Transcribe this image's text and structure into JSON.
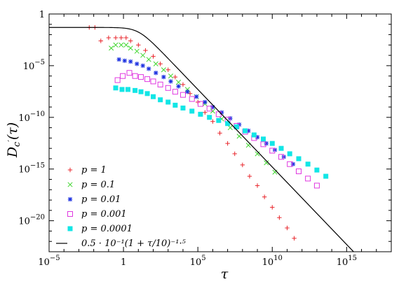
{
  "chart_data": {
    "type": "scatter",
    "xscale": "log",
    "yscale": "log",
    "xlim": [
      1e-05,
      1e+18
    ],
    "ylim": [
      1e-23,
      1
    ],
    "xlabel": "τ",
    "ylabel": "D_c′(τ)",
    "xticks": [
      {
        "value": 1e-05,
        "base": "10",
        "exp": "−5"
      },
      {
        "value": 1,
        "base": "1",
        "exp": ""
      },
      {
        "value": 100000.0,
        "base": "10",
        "exp": "5"
      },
      {
        "value": 10000000000.0,
        "base": "10",
        "exp": "10"
      },
      {
        "value": 1000000000000000.0,
        "base": "10",
        "exp": "15"
      }
    ],
    "yticks": [
      {
        "value": 1,
        "base": "1",
        "exp": ""
      },
      {
        "value": 1e-05,
        "base": "10",
        "exp": "−5"
      },
      {
        "value": 1e-10,
        "base": "10",
        "exp": "−10"
      },
      {
        "value": 1e-15,
        "base": "10",
        "exp": "−15"
      },
      {
        "value": 1e-20,
        "base": "10",
        "exp": "−20"
      }
    ],
    "grid": false,
    "legend_position": "bottom-left",
    "series": [
      {
        "name": "p = 1",
        "marker": "plus",
        "color": "#e8252b",
        "points": [
          [
            0.005,
            0.05
          ],
          [
            0.012,
            0.05
          ],
          [
            0.03,
            0.0025
          ],
          [
            0.1,
            0.005
          ],
          [
            0.3,
            0.005
          ],
          [
            0.7,
            0.005
          ],
          [
            1.5,
            0.005
          ],
          [
            3,
            0.0025
          ],
          [
            10,
            0.001
          ],
          [
            30,
            0.0003
          ],
          [
            100,
            8e-05
          ],
          [
            300,
            1.5e-05
          ],
          [
            1000,
            4e-06
          ],
          [
            3000,
            8e-07
          ],
          [
            10000.0,
            1.5e-07
          ],
          [
            30000.0,
            2e-08
          ],
          [
            100000.0,
            3e-09
          ],
          [
            300000.0,
            3e-10
          ],
          [
            1000000.0,
            4e-11
          ],
          [
            3000000.0,
            3e-12
          ],
          [
            10000000.0,
            3e-13
          ],
          [
            30000000.0,
            3e-14
          ],
          [
            100000000.0,
            2.5e-15
          ],
          [
            300000000.0,
            2e-16
          ],
          [
            1000000000.0,
            2.5e-17
          ],
          [
            3000000000.0,
            2e-18
          ],
          [
            10000000000.0,
            2e-19
          ],
          [
            30000000000.0,
            2e-20
          ],
          [
            100000000000.0,
            2e-21
          ],
          [
            300000000000.0,
            2e-22
          ]
        ]
      },
      {
        "name": "p = 0.1",
        "marker": "cross",
        "color": "#3fd62e",
        "points": [
          [
            0.15,
            0.0005
          ],
          [
            0.3,
            0.001
          ],
          [
            0.7,
            0.001
          ],
          [
            1.5,
            0.001
          ],
          [
            3,
            0.0005
          ],
          [
            8,
            0.00025
          ],
          [
            20,
            0.0001
          ],
          [
            50,
            4e-05
          ],
          [
            150,
            1.5e-05
          ],
          [
            500,
            4e-06
          ],
          [
            1500,
            1e-06
          ],
          [
            5000,
            2.5e-07
          ],
          [
            20000.0,
            5e-08
          ],
          [
            80000.0,
            1e-08
          ],
          [
            300000.0,
            2e-09
          ],
          [
            1000000.0,
            4e-10
          ],
          [
            4000000.0,
            7e-11
          ],
          [
            15000000.0,
            1e-11
          ],
          [
            60000000.0,
            1.5e-12
          ],
          [
            250000000.0,
            2e-13
          ],
          [
            1000000000.0,
            3e-14
          ],
          [
            4000000000.0,
            4e-15
          ],
          [
            15000000000.0,
            5e-16
          ]
        ]
      },
      {
        "name": "p = 0.01",
        "marker": "star",
        "color": "#1a2fe0",
        "points": [
          [
            0.5,
            4e-05
          ],
          [
            1.2,
            3e-05
          ],
          [
            3,
            2.5e-05
          ],
          [
            8,
            1.5e-05
          ],
          [
            20,
            1e-05
          ],
          [
            50,
            5e-06
          ],
          [
            150,
            2e-06
          ],
          [
            500,
            8e-07
          ],
          [
            1500,
            3e-07
          ],
          [
            5000,
            1e-07
          ],
          [
            20000.0,
            3e-08
          ],
          [
            80000.0,
            1e-08
          ],
          [
            300000.0,
            3e-09
          ],
          [
            1000000.0,
            1e-09
          ],
          [
            4000000.0,
            3e-10
          ],
          [
            15000000.0,
            8e-11
          ],
          [
            60000000.0,
            2e-11
          ],
          [
            250000000.0,
            5e-12
          ],
          [
            1000000000.0,
            1.2e-12
          ],
          [
            4000000000.0,
            3e-13
          ],
          [
            15000000000.0,
            7e-14
          ],
          [
            60000000000.0,
            1.5e-14
          ],
          [
            250000000000.0,
            3e-15
          ]
        ]
      },
      {
        "name": "p = 0.001",
        "marker": "square-open",
        "color": "#e038e0",
        "points": [
          [
            0.4,
            4e-07
          ],
          [
            0.9,
            1e-06
          ],
          [
            2.5,
            2e-06
          ],
          [
            6,
            1e-06
          ],
          [
            15,
            8e-07
          ],
          [
            40,
            5e-07
          ],
          [
            100,
            3e-07
          ],
          [
            300,
            1.5e-07
          ],
          [
            1000,
            7e-08
          ],
          [
            3000,
            3e-08
          ],
          [
            10000.0,
            1.5e-08
          ],
          [
            40000.0,
            6e-09
          ],
          [
            150000.0,
            2e-09
          ],
          [
            600000.0,
            7e-10
          ],
          [
            2500000.0,
            2e-10
          ],
          [
            10000000.0,
            6e-11
          ],
          [
            40000000.0,
            1.5e-11
          ],
          [
            150000000.0,
            4e-12
          ],
          [
            600000000.0,
            1e-12
          ],
          [
            2500000000.0,
            2.5e-13
          ],
          [
            10000000000.0,
            6e-14
          ],
          [
            40000000000.0,
            1.5e-14
          ],
          [
            150000000000.0,
            3e-15
          ],
          [
            600000000000.0,
            6e-16
          ],
          [
            2500000000000.0,
            1.2e-16
          ],
          [
            10000000000000.0,
            2.5e-17
          ]
        ]
      },
      {
        "name": "p = 0.0001",
        "marker": "square-filled",
        "color": "#12e6e6",
        "points": [
          [
            0.3,
            7e-08
          ],
          [
            0.8,
            5e-08
          ],
          [
            2,
            5e-08
          ],
          [
            6,
            4e-08
          ],
          [
            15,
            3e-08
          ],
          [
            40,
            2e-08
          ],
          [
            100,
            1e-08
          ],
          [
            300,
            5e-09
          ],
          [
            1000,
            3e-09
          ],
          [
            3000,
            1.5e-09
          ],
          [
            10000.0,
            8e-10
          ],
          [
            40000.0,
            4e-10
          ],
          [
            150000.0,
            2e-10
          ],
          [
            600000.0,
            1e-10
          ],
          [
            2500000.0,
            5e-11
          ],
          [
            10000000.0,
            2.5e-11
          ],
          [
            40000000.0,
            1.2e-11
          ],
          [
            150000000.0,
            5e-12
          ],
          [
            600000000.0,
            2e-12
          ],
          [
            2500000000.0,
            8e-13
          ],
          [
            10000000000.0,
            3e-13
          ],
          [
            40000000000.0,
            1e-13
          ],
          [
            150000000000.0,
            3e-14
          ],
          [
            600000000000.0,
            1e-14
          ],
          [
            2500000000000.0,
            3e-15
          ],
          [
            10000000000000.0,
            8e-16
          ],
          [
            40000000000000.0,
            2e-16
          ]
        ]
      },
      {
        "name": "0.5 · 10⁻¹(1 + τ/10)⁻¹·⁵",
        "marker": "line",
        "color": "#000000",
        "function": {
          "amplitude": 0.05,
          "scale": 10,
          "exponent": -1.5
        }
      }
    ]
  }
}
